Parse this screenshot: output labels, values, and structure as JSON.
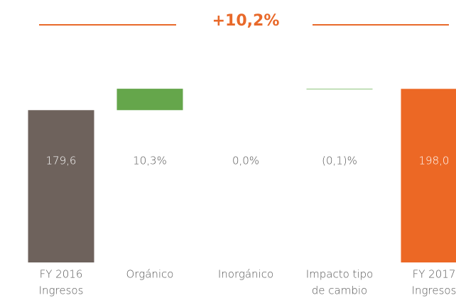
{
  "chart_data": {
    "type": "waterfall",
    "title": "+10,2%",
    "categories": [
      [
        "FY 2016",
        "Ingresos"
      ],
      [
        "Orgánico"
      ],
      [
        "Inorgánico"
      ],
      [
        "Impacto tipo",
        "de cambio"
      ],
      [
        "FY 2017",
        "Ingresos"
      ]
    ],
    "kinds": [
      "total",
      "pct",
      "pct",
      "pct",
      "total"
    ],
    "values": [
      179.6,
      10.3,
      0.0,
      -0.1,
      198.0
    ],
    "value_labels": [
      "179,6",
      "10,3%",
      "0,0%",
      "(0,1)%",
      "198,0"
    ],
    "colors": [
      "#6e625c",
      "#65a64b",
      "#65a64b",
      "#8cc47a",
      "#ec6825"
    ],
    "ylim": [
      48,
      200
    ]
  }
}
